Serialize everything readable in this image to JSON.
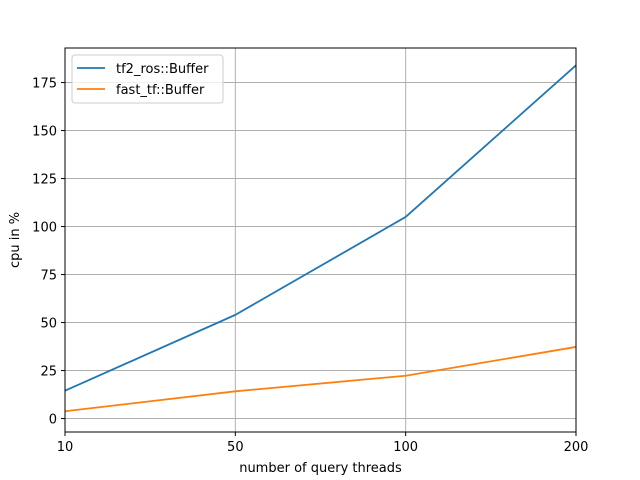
{
  "chart_data": {
    "type": "line",
    "x_categories": [
      "10",
      "50",
      "100",
      "200"
    ],
    "series": [
      {
        "name": "tf2_ros::Buffer",
        "values": [
          14.5,
          54,
          105,
          184
        ],
        "color": "#1f77b4"
      },
      {
        "name": "fast_tf::Buffer",
        "values": [
          3.8,
          14.2,
          22.3,
          37.3
        ],
        "color": "#ff7f0e"
      }
    ],
    "xlabel": "number of query threads",
    "ylabel": "cpu in %",
    "ylim": [
      -7,
      193
    ],
    "yticks": [
      0,
      25,
      50,
      75,
      100,
      125,
      150,
      175
    ],
    "grid": true,
    "legend_position": "top-left"
  }
}
